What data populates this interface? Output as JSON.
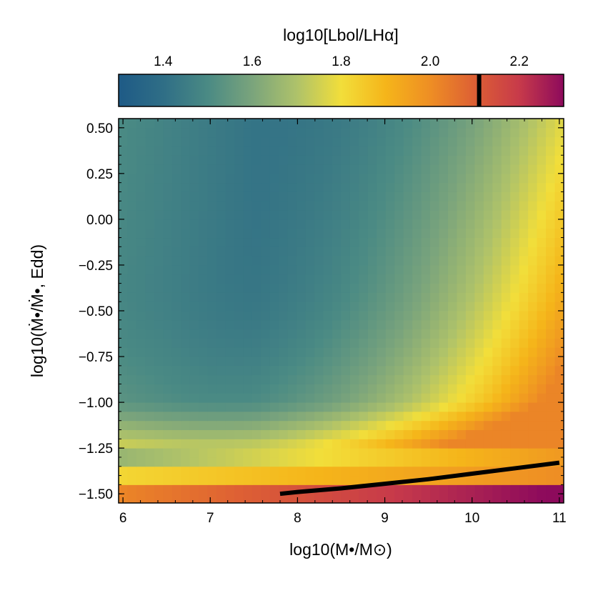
{
  "chart_data": {
    "type": "heatmap",
    "xlabel": "log10(M•/M⊙)",
    "ylabel": "log10(Ṁ•/Ṁ•, Edd)",
    "colorbar_label": "log10[Lbol/LHα]",
    "xlim": [
      5.95,
      11.05
    ],
    "ylim": [
      -1.55,
      0.55
    ],
    "xticks": [
      "6",
      "7",
      "8",
      "9",
      "10",
      "11"
    ],
    "yticks": [
      "−1.50",
      "−1.25",
      "−1.00",
      "−0.75",
      "−0.50",
      "−0.25",
      "0.00",
      "0.25",
      "0.50"
    ],
    "colorbar_ticks": [
      "1.4",
      "1.6",
      "1.8",
      "2.0",
      "2.2"
    ],
    "colorbar_range": [
      1.3,
      2.3
    ],
    "colorbar_marker": 2.11,
    "colormap": [
      "#1e5a86",
      "#2f6e86",
      "#4a8a84",
      "#7aa47c",
      "#aec26a",
      "#f2de3a",
      "#f5b51a",
      "#ee8e24",
      "#dd5f34",
      "#c73a4a",
      "#8d0a5c"
    ],
    "x_range": [
      5.95,
      11.05
    ],
    "y_range": [
      -1.55,
      0.55
    ],
    "black_line": {
      "x": [
        7.8,
        8.0,
        8.5,
        9.0,
        9.5,
        10.0,
        10.5,
        11.0
      ],
      "y": [
        -1.5,
        -1.49,
        -1.47,
        -1.445,
        -1.42,
        -1.39,
        -1.36,
        -1.33
      ]
    }
  }
}
